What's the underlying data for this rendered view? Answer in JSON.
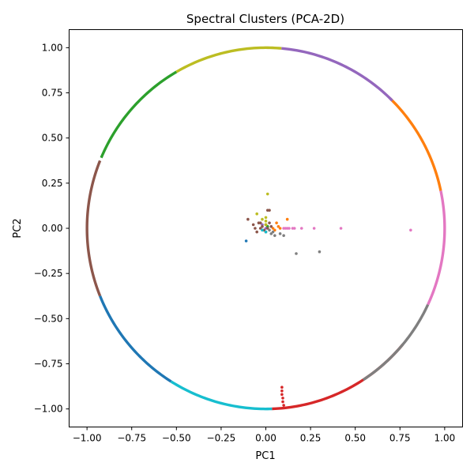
{
  "chart_data": {
    "type": "scatter",
    "title": "Spectral Clusters (PCA-2D)",
    "xlabel": "PC1",
    "ylabel": "PC2",
    "xlim": [
      -1.1,
      1.1
    ],
    "ylim": [
      -1.1,
      1.1
    ],
    "xticks": [
      -1.0,
      -0.75,
      -0.5,
      -0.25,
      0.0,
      0.25,
      0.5,
      0.75,
      1.0
    ],
    "xtick_labels": [
      "−1.00",
      "−0.75",
      "−0.50",
      "−0.25",
      "0.00",
      "0.25",
      "0.50",
      "0.75",
      "1.00"
    ],
    "yticks": [
      -1.0,
      -0.75,
      -0.5,
      -0.25,
      0.0,
      0.25,
      0.5,
      0.75,
      1.0
    ],
    "ytick_labels": [
      "−1.00",
      "−0.75",
      "−0.50",
      "−0.25",
      "0.00",
      "0.25",
      "0.50",
      "0.75",
      "1.00"
    ],
    "grid": false,
    "legend": "none",
    "series": [
      {
        "color": "#1f77b4",
        "arc_deg": [
          202,
          238
        ],
        "points": [
          [
            -0.11,
            -0.07
          ]
        ]
      },
      {
        "color": "#ff7f0e",
        "arc_deg": [
          12,
          46
        ],
        "points": [
          [
            0.06,
            0.03
          ],
          [
            0.07,
            0.01
          ],
          [
            0.12,
            0.05
          ],
          [
            0.05,
            -0.01
          ],
          [
            0.08,
            0.0
          ],
          [
            0.04,
            0.0
          ]
        ]
      },
      {
        "color": "#2ca02c",
        "arc_deg": [
          120,
          157
        ],
        "points": [
          [
            0.0,
            0.02
          ],
          [
            0.01,
            0.01
          ]
        ]
      },
      {
        "color": "#d62728",
        "arc_deg": [
          272,
          320
        ],
        "points": [
          [
            0.09,
            -0.88
          ],
          [
            0.09,
            -0.9
          ],
          [
            0.09,
            -0.92
          ],
          [
            0.095,
            -0.94
          ],
          [
            0.095,
            -0.96
          ],
          [
            0.1,
            -0.98
          ]
        ]
      },
      {
        "color": "#9467bd",
        "arc_deg": [
          45,
          85
        ],
        "points": [
          [
            -0.02,
            0.02
          ],
          [
            0.0,
            0.0
          ]
        ]
      },
      {
        "color": "#8c564b",
        "arc_deg": [
          158,
          202
        ],
        "points": [
          [
            -0.1,
            0.05
          ],
          [
            -0.07,
            0.02
          ],
          [
            -0.06,
            0.0
          ],
          [
            -0.04,
            0.03
          ],
          [
            -0.03,
            0.0
          ],
          [
            -0.02,
            0.01
          ],
          [
            -0.01,
            -0.01
          ],
          [
            0.0,
            0.02
          ],
          [
            0.01,
            0.0
          ],
          [
            0.02,
            0.03
          ],
          [
            0.03,
            0.01
          ],
          [
            0.01,
            0.1
          ],
          [
            0.02,
            0.1
          ],
          [
            -0.03,
            0.03
          ],
          [
            -0.05,
            -0.02
          ],
          [
            0.0,
            -0.02
          ]
        ]
      },
      {
        "color": "#e377c2",
        "arc_deg": [
          -25,
          12
        ],
        "points": [
          [
            0.1,
            0.0
          ],
          [
            0.11,
            0.0
          ],
          [
            0.12,
            0.0
          ],
          [
            0.13,
            0.0
          ],
          [
            0.15,
            0.0
          ],
          [
            0.16,
            0.0
          ],
          [
            0.2,
            0.0
          ],
          [
            0.27,
            0.0
          ],
          [
            0.42,
            0.0
          ],
          [
            0.81,
            -0.01
          ]
        ]
      },
      {
        "color": "#7f7f7f",
        "arc_deg": [
          -57,
          -25
        ],
        "points": [
          [
            0.03,
            -0.03
          ],
          [
            0.04,
            -0.02
          ],
          [
            0.05,
            -0.04
          ],
          [
            0.08,
            -0.03
          ],
          [
            0.1,
            -0.04
          ],
          [
            0.17,
            -0.14
          ],
          [
            0.3,
            -0.13
          ],
          [
            0.02,
            -0.01
          ]
        ]
      },
      {
        "color": "#bcbd22",
        "arc_deg": [
          85,
          120
        ],
        "points": [
          [
            0.01,
            0.19
          ],
          [
            -0.05,
            0.08
          ],
          [
            0.0,
            0.06
          ],
          [
            0.0,
            0.04
          ],
          [
            0.0,
            0.02
          ],
          [
            -0.02,
            0.05
          ]
        ]
      },
      {
        "color": "#17becf",
        "arc_deg": [
          238,
          272
        ],
        "points": [
          [
            -0.02,
            -0.01
          ],
          [
            0.0,
            -0.02
          ]
        ]
      }
    ]
  }
}
